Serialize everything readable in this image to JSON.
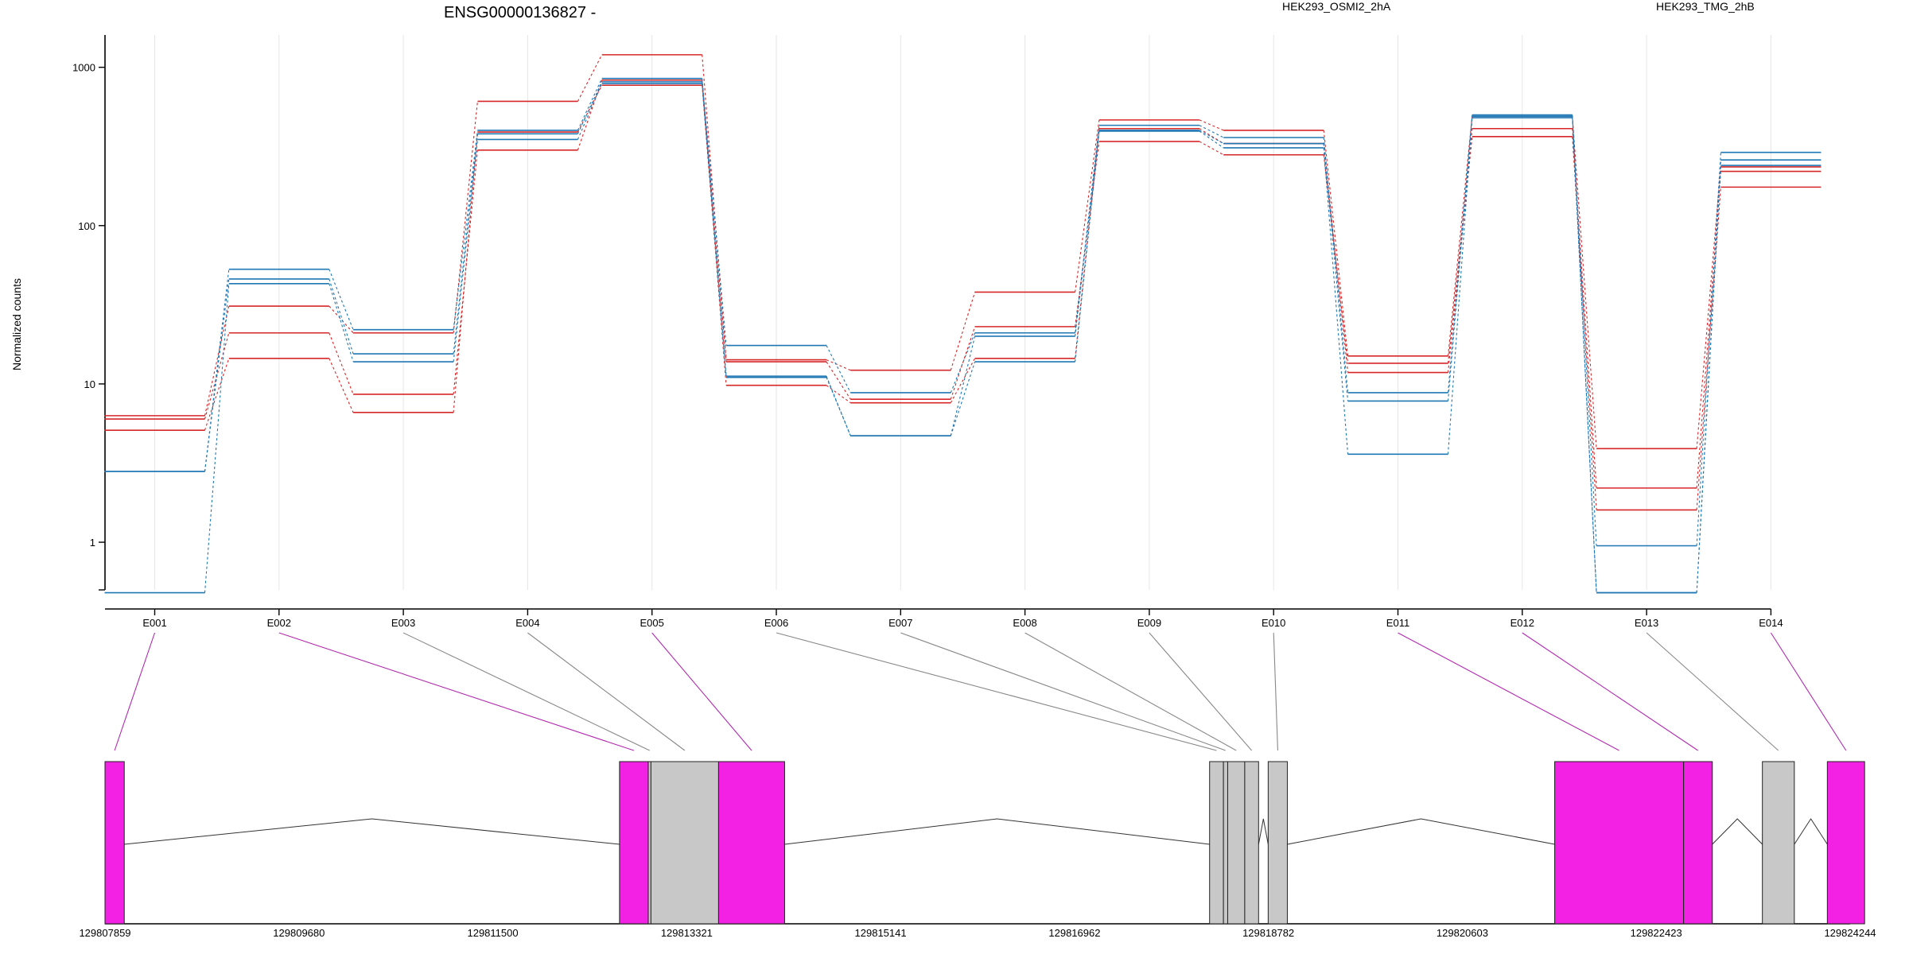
{
  "colors": {
    "condition_a": "#d62728",
    "condition_b": "#1f77b4",
    "highlight_exon": "#f321e3",
    "normal_exon": "#c8c8c8",
    "map_highlight": "#b02ab0",
    "map_normal": "#888888"
  },
  "legend": {
    "condition_a": "HEK293_OSMI2_2hA",
    "condition_b": "HEK293_TMG_2hB"
  },
  "chart_data": {
    "type": "line",
    "title": "ENSG00000136827 -",
    "ylabel": "Normalized counts",
    "xlabel": "",
    "y_scale": "log",
    "ylim": [
      0.5,
      1600
    ],
    "yticks": [
      1,
      10,
      100,
      1000
    ],
    "ytick_labels": [
      "1",
      "10",
      "100",
      "1000"
    ],
    "grid": "vertical only",
    "categories": [
      "E001",
      "E002",
      "E003",
      "E004",
      "E005",
      "E006",
      "E007",
      "E008",
      "E009",
      "E010",
      "E011",
      "E012",
      "E013",
      "E014"
    ],
    "series": [
      {
        "condition": "a",
        "values": [
          6.3,
          31,
          21,
          610,
          1200,
          14.2,
          12.2,
          38,
          465,
          400,
          15,
          490,
          3.9,
          235
        ]
      },
      {
        "condition": "a",
        "values": [
          6.0,
          21,
          8.6,
          300,
          830,
          13.8,
          8.0,
          23,
          340,
          280,
          13.5,
          410,
          2.2,
          220
        ]
      },
      {
        "condition": "a",
        "values": [
          5.1,
          14.5,
          6.6,
          390,
          770,
          9.8,
          7.6,
          14.5,
          410,
          330,
          11.8,
          365,
          1.6,
          175
        ]
      },
      {
        "condition": "b",
        "values": [
          2.8,
          53,
          22,
          400,
          850,
          17.5,
          8.8,
          21,
          430,
          360,
          8.8,
          500,
          0.95,
          290
        ]
      },
      {
        "condition": "b",
        "values": [
          2.8,
          46,
          15.5,
          380,
          810,
          11.2,
          4.7,
          20,
          400,
          330,
          7.8,
          490,
          0.48,
          260
        ]
      },
      {
        "condition": "b",
        "values": [
          0.48,
          43,
          13.8,
          350,
          790,
          11.0,
          4.7,
          13.8,
          395,
          310,
          3.6,
          480,
          0.48,
          240
        ]
      }
    ],
    "gene_model": {
      "coordinates": [
        "129807859",
        "129809680",
        "129811500",
        "129813321",
        "129815141",
        "129816962",
        "129818782",
        "129820603",
        "129822423",
        "129824244"
      ],
      "exons": [
        {
          "id": "E001",
          "start": 129807859,
          "end": 129808040,
          "highlight": true
        },
        {
          "id": "E002",
          "start": 129812690,
          "end": 129812960,
          "highlight": true
        },
        {
          "id": "E003",
          "start": 129812960,
          "end": 129812985,
          "highlight": false
        },
        {
          "id": "E004",
          "start": 129812985,
          "end": 129813620,
          "highlight": false
        },
        {
          "id": "E005",
          "start": 129813620,
          "end": 129814240,
          "highlight": true
        },
        {
          "id": "E006",
          "start": 129818230,
          "end": 129818360,
          "highlight": false
        },
        {
          "id": "E007",
          "start": 129818360,
          "end": 129818400,
          "highlight": false
        },
        {
          "id": "E008",
          "start": 129818400,
          "end": 129818560,
          "highlight": false
        },
        {
          "id": "E009",
          "start": 129818560,
          "end": 129818690,
          "highlight": false
        },
        {
          "id": "E010",
          "start": 129818780,
          "end": 129818960,
          "highlight": false
        },
        {
          "id": "E011",
          "start": 129821470,
          "end": 129822680,
          "highlight": true
        },
        {
          "id": "E012",
          "start": 129822680,
          "end": 129822950,
          "highlight": true
        },
        {
          "id": "E013",
          "start": 129823420,
          "end": 129823720,
          "highlight": false
        },
        {
          "id": "E014",
          "start": 129824030,
          "end": 129824380,
          "highlight": true
        }
      ]
    }
  }
}
